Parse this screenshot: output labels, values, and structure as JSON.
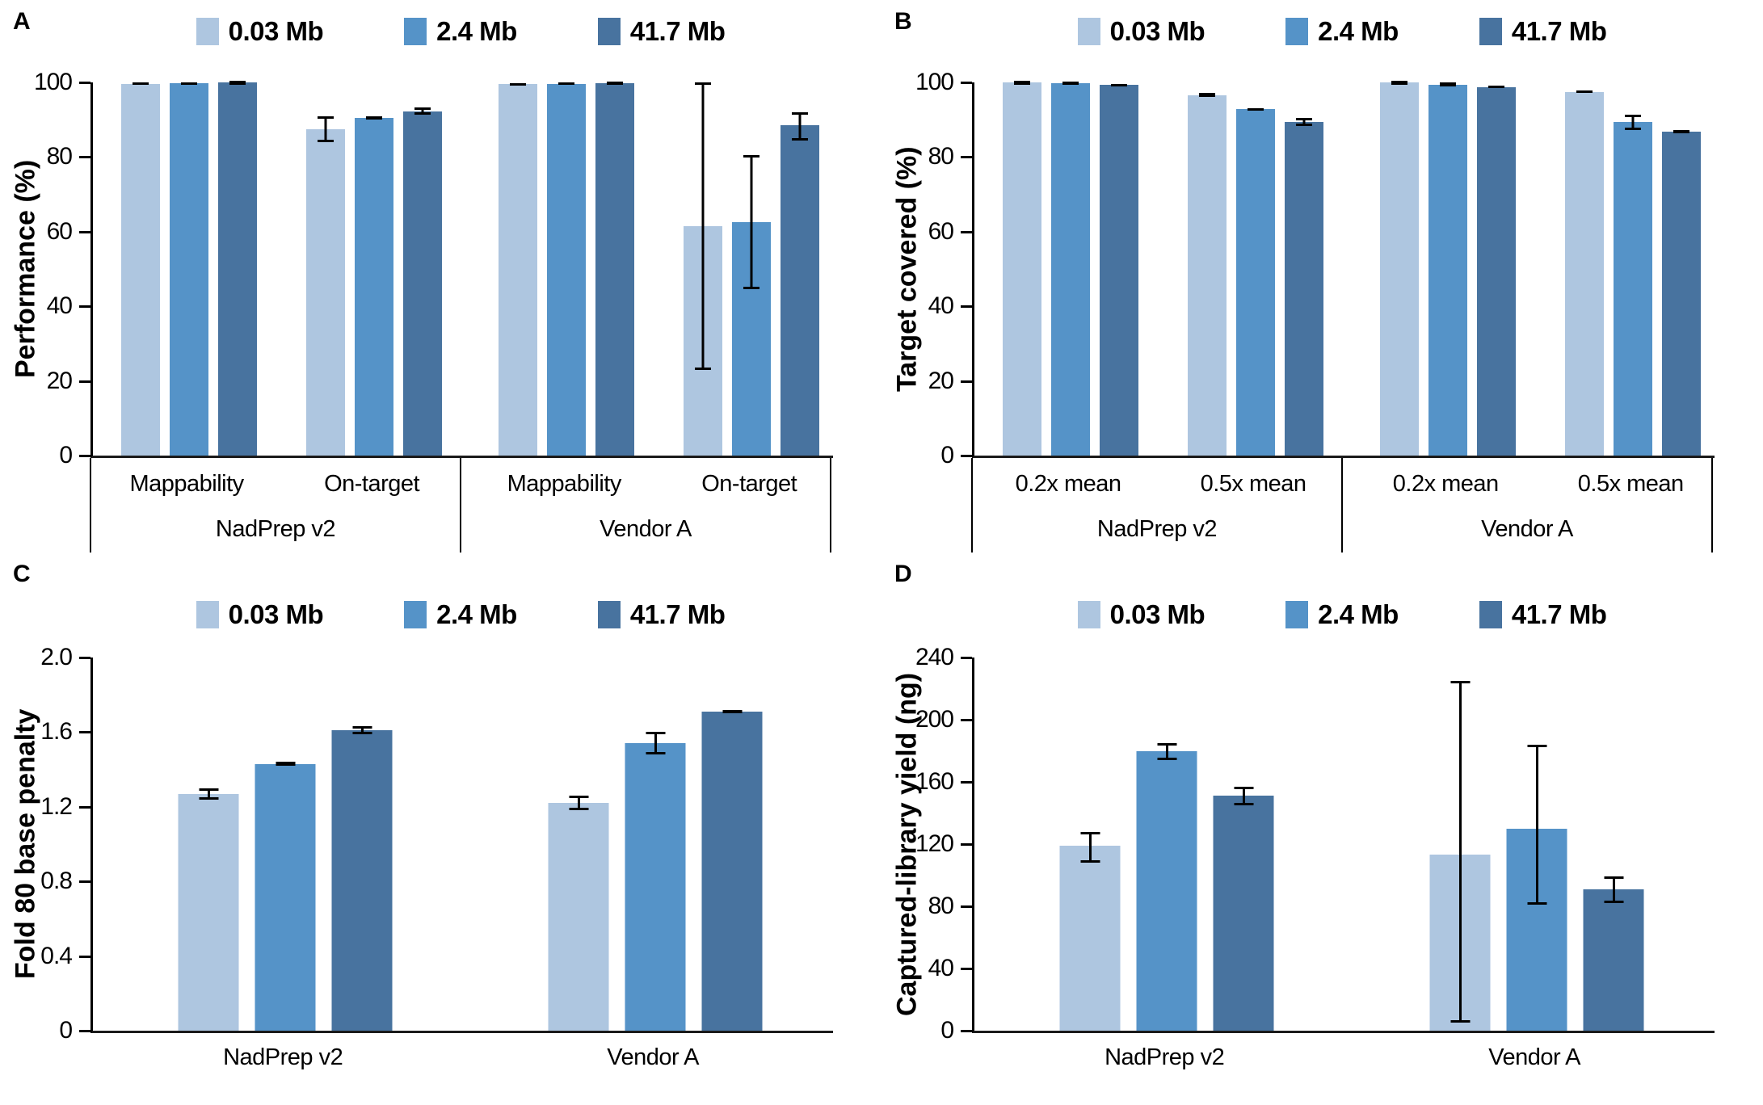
{
  "palette": {
    "0.03 Mb": "#aec6e0",
    "2.4 Mb": "#5593c8",
    "41.7 Mb": "#48739f"
  },
  "series_labels": [
    "0.03 Mb",
    "2.4 Mb",
    "41.7 Mb"
  ],
  "chart_data": [
    {
      "panel_label": "A",
      "type": "bar",
      "ylabel": "Performance (%)",
      "ylim": [
        0,
        100
      ],
      "yticks": [
        0,
        20,
        40,
        60,
        80,
        100
      ],
      "ytick_labels": [
        "0",
        "20",
        "40",
        "60",
        "80",
        "100"
      ],
      "series": [
        "0.03 Mb",
        "2.4 Mb",
        "41.7 Mb"
      ],
      "legend_position": "top-center",
      "grid": false,
      "axis_style": "boxed",
      "groups": [
        {
          "label": "NadPrep v2",
          "subgroups": [
            {
              "label": "Mappability",
              "values": [
                99.6,
                99.7,
                99.9
              ],
              "err": [
                [
                  99.3,
                  99.9
                ],
                [
                  99.4,
                  100
                ],
                [
                  99.7,
                  100
                ]
              ]
            },
            {
              "label": "On-target",
              "values": [
                87.5,
                90.5,
                92.3
              ],
              "err": [
                [
                  84.0,
                  91.0
                ],
                [
                  90.0,
                  91.0
                ],
                [
                  91.3,
                  93.3
                ]
              ]
            }
          ]
        },
        {
          "label": "Vendor A",
          "subgroups": [
            {
              "label": "Mappability",
              "values": [
                99.5,
                99.6,
                99.8
              ],
              "err": [
                [
                  99.2,
                  99.8
                ],
                [
                  99.3,
                  99.9
                ],
                [
                  99.6,
                  100
                ]
              ]
            },
            {
              "label": "On-target",
              "values": [
                61.5,
                62.5,
                88.5
              ],
              "err": [
                [
                  23.0,
                  100.0
                ],
                [
                  44.5,
                  80.5
                ],
                [
                  84.5,
                  92.0
                ]
              ]
            }
          ]
        }
      ]
    },
    {
      "panel_label": "B",
      "type": "bar",
      "ylabel": "Target covered (%)",
      "ylim": [
        0,
        100
      ],
      "yticks": [
        0,
        20,
        40,
        60,
        80,
        100
      ],
      "ytick_labels": [
        "0",
        "20",
        "40",
        "60",
        "80",
        "100"
      ],
      "series": [
        "0.03 Mb",
        "2.4 Mb",
        "41.7 Mb"
      ],
      "legend_position": "top-center",
      "grid": false,
      "axis_style": "boxed",
      "groups": [
        {
          "label": "NadPrep v2",
          "subgroups": [
            {
              "label": "0.2x mean",
              "values": [
                100,
                99.8,
                99.3
              ],
              "err": [
                [
                  99.8,
                  100
                ],
                [
                  99.5,
                  100
                ],
                [
                  99.0,
                  99.6
                ]
              ]
            },
            {
              "label": "0.5x mean",
              "values": [
                96.6,
                92.8,
                89.4
              ],
              "err": [
                [
                  96.1,
                  97.1
                ],
                [
                  92.5,
                  93.1
                ],
                [
                  88.4,
                  90.4
                ]
              ]
            }
          ]
        },
        {
          "label": "Vendor A",
          "subgroups": [
            {
              "label": "0.2x mean",
              "values": [
                100,
                99.4,
                98.8
              ],
              "err": [
                [
                  99.8,
                  100
                ],
                [
                  98.9,
                  99.9
                ],
                [
                  98.5,
                  99.1
                ]
              ]
            },
            {
              "label": "0.5x mean",
              "values": [
                97.5,
                89.3,
                86.8
              ],
              "err": [
                [
                  97.1,
                  97.9
                ],
                [
                  87.3,
                  91.3
                ],
                [
                  86.5,
                  87.1
                ]
              ]
            }
          ]
        }
      ]
    },
    {
      "panel_label": "C",
      "type": "bar",
      "ylabel": "Fold 80 base penalty",
      "ylim": [
        0,
        2.0
      ],
      "yticks": [
        0,
        0.4,
        0.8,
        1.2,
        1.6,
        2.0
      ],
      "ytick_labels": [
        "0",
        "0.4",
        "0.8",
        "1.2",
        "1.6",
        "2.0"
      ],
      "series": [
        "0.03 Mb",
        "2.4 Mb",
        "41.7 Mb"
      ],
      "legend_position": "top-center",
      "grid": false,
      "axis_style": "plain",
      "groups": [
        {
          "label": "NadPrep v2",
          "subgroups": [
            {
              "label": "",
              "values": [
                1.27,
                1.43,
                1.61
              ],
              "err": [
                [
                  1.24,
                  1.3
                ],
                [
                  1.42,
                  1.44
                ],
                [
                  1.59,
                  1.63
                ]
              ]
            }
          ]
        },
        {
          "label": "Vendor A",
          "subgroups": [
            {
              "label": "",
              "values": [
                1.22,
                1.54,
                1.71
              ],
              "err": [
                [
                  1.18,
                  1.26
                ],
                [
                  1.48,
                  1.6
                ],
                [
                  1.7,
                  1.72
                ]
              ]
            }
          ]
        }
      ]
    },
    {
      "panel_label": "D",
      "type": "bar",
      "ylabel": "Captured-library yield (ng)",
      "ylim": [
        0,
        240
      ],
      "yticks": [
        0,
        40,
        80,
        120,
        160,
        200,
        240
      ],
      "ytick_labels": [
        "0",
        "40",
        "80",
        "120",
        "160",
        "200",
        "240"
      ],
      "series": [
        "0.03 Mb",
        "2.4 Mb",
        "41.7 Mb"
      ],
      "legend_position": "top-center",
      "grid": false,
      "axis_style": "plain",
      "groups": [
        {
          "label": "NadPrep v2",
          "subgroups": [
            {
              "label": "",
              "values": [
                119,
                180,
                151
              ],
              "err": [
                [
                  108,
                  128
                ],
                [
                  174,
                  185
                ],
                [
                  145,
                  157
                ]
              ]
            }
          ]
        },
        {
          "label": "Vendor A",
          "subgroups": [
            {
              "label": "",
              "values": [
                113,
                130,
                91
              ],
              "err": [
                [
                  5,
                  225
                ],
                [
                  81,
                  184
                ],
                [
                  82,
                  99
                ]
              ]
            }
          ]
        }
      ]
    }
  ]
}
